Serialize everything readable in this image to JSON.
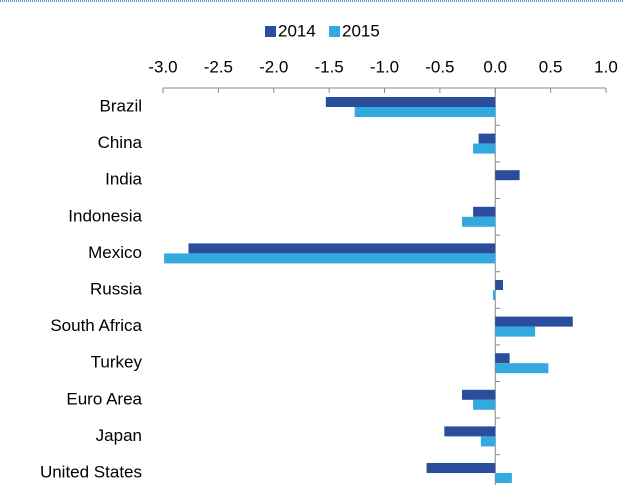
{
  "chart_data": {
    "type": "hbar",
    "categories": [
      "Brazil",
      "China",
      "India",
      "Indonesia",
      "Mexico",
      "Russia",
      "South Africa",
      "Turkey",
      "Euro Area",
      "Japan",
      "United States"
    ],
    "series": [
      {
        "name": "2014",
        "color": "#2a4d9c",
        "values": [
          -1.53,
          -0.15,
          0.22,
          -0.2,
          -2.77,
          0.07,
          0.7,
          0.13,
          -0.3,
          -0.46,
          -0.62
        ]
      },
      {
        "name": "2015",
        "color": "#33aadf",
        "values": [
          -1.27,
          -0.2,
          0,
          -0.3,
          -2.99,
          -0.02,
          0.36,
          0.48,
          -0.2,
          -0.13,
          0.15
        ]
      }
    ],
    "xlim": [
      -3.0,
      1.0
    ],
    "xticks": [
      {
        "value": -3.0,
        "label": "-3.0"
      },
      -2.5,
      {
        "value": -2.0,
        "label": "-2.0"
      },
      -1.5,
      {
        "value": -1.0,
        "label": "-1.0"
      },
      -0.5,
      {
        "value": 0,
        "label": "0.0"
      },
      0.5,
      {
        "value": 1.0,
        "label": "1.0"
      }
    ],
    "legend": "top"
  }
}
